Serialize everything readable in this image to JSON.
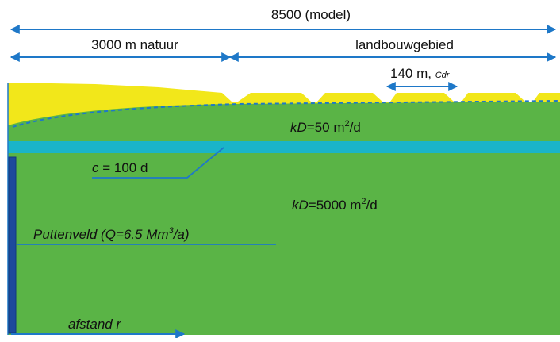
{
  "labels": {
    "model_width": "8500 (model)",
    "nature_zone": "3000 m natuur",
    "agri_zone": "landbouwgebied",
    "ditch_spacing_value": "140 m,",
    "ditch_spacing_symbol": "Cdr",
    "top_layer_kd_symbol": "kD",
    "top_layer_kd_value": "=50 m",
    "top_layer_kd_unit_exp": "2",
    "top_layer_kd_unit_tail": "/d",
    "aquitard_c_symbol": "c",
    "aquitard_c_value": " = 100 d",
    "aquifer_kd_symbol": "kD",
    "aquifer_kd_value": "=5000 m",
    "aquifer_kd_unit_exp": "2",
    "aquifer_kd_unit_tail": "/d",
    "wellfield_prefix": "Puttenveld (Q=6.5 Mm",
    "wellfield_exp": "3",
    "wellfield_suffix": "/a)",
    "distance_axis": "afstand r"
  },
  "colors": {
    "dimension_line": "#1e78c8",
    "topsoil_yellow": "#f2e71a",
    "aquifer_green": "#5ab446",
    "aquitard_cyan": "#1ab4c8",
    "well_blue": "#1e4a9c",
    "text_dark": "#111111"
  }
}
